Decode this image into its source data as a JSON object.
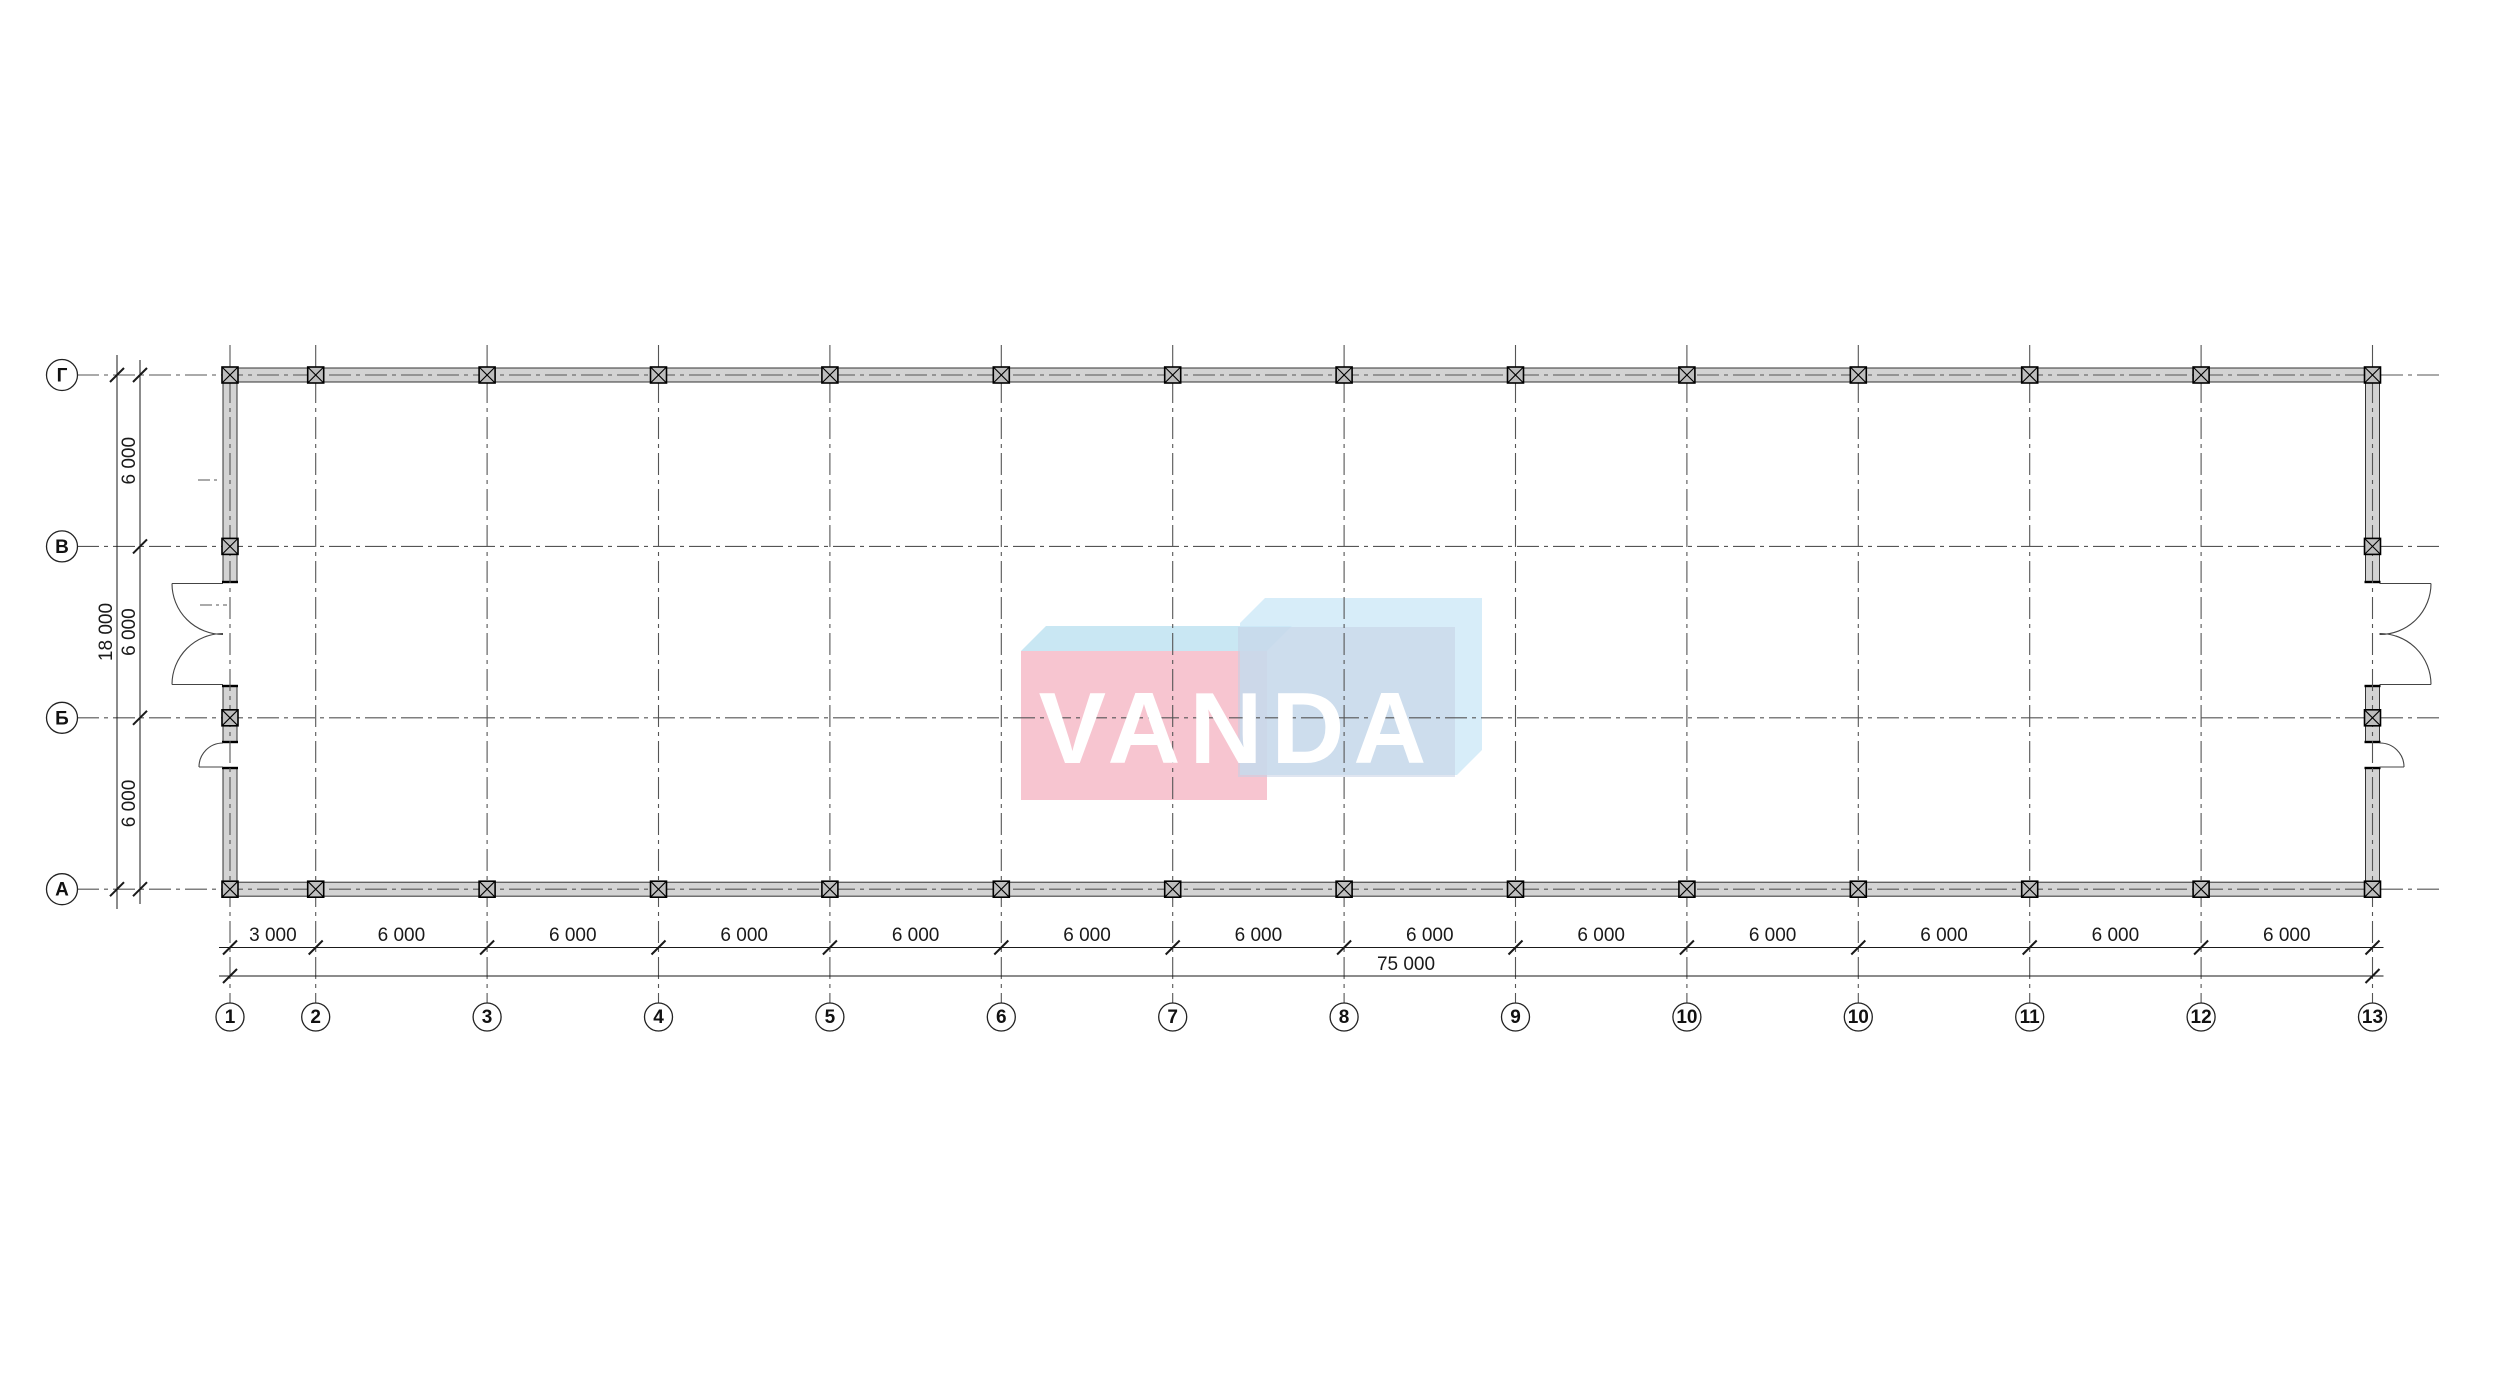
{
  "watermark": {
    "text": "VANDA",
    "text_color": "#ffffff",
    "red_front_color": "#f7c5d0",
    "top_face_color": "#c9e7f3",
    "blue_silhouette_rgba": "rgba(205,233,247,0.8)",
    "blue_front_rgba": "rgba(196,208,228,0.55)"
  },
  "axes": {
    "row_labels": [
      "Г",
      "В",
      "Б",
      "А"
    ],
    "col_labels": [
      "1",
      "2",
      "3",
      "4",
      "5",
      "6",
      "7",
      "8",
      "9",
      "10",
      "10",
      "11",
      "12",
      "13"
    ]
  },
  "grid": {
    "col_spacings_mm": [
      3000,
      6000,
      6000,
      6000,
      6000,
      6000,
      6000,
      6000,
      6000,
      6000,
      6000,
      6000,
      6000
    ],
    "row_spacings_mm": [
      6000,
      6000,
      6000
    ],
    "total_width_mm": 75000,
    "total_height_mm": 18000
  },
  "dimensions": {
    "bottom_segment_labels": [
      "3 000",
      "6 000",
      "6 000",
      "6 000",
      "6 000",
      "6 000",
      "6 000",
      "6 000",
      "6 000",
      "6 000",
      "6 000",
      "6 000",
      "6 000"
    ],
    "bottom_total_label": "75 000",
    "left_segment_labels": [
      "6 000",
      "6 000",
      "6 000"
    ],
    "left_total_label": "18 000"
  },
  "style": {
    "wall_fill": "#d3d3d3",
    "wall_stroke": "#333333",
    "grid_line_color": "#555555",
    "dim_color": "#1a1a1a",
    "column_fill": "#bdbdbd",
    "column_stroke": "#000000",
    "door_stroke": "#444444",
    "bubble_stroke": "#222222"
  }
}
